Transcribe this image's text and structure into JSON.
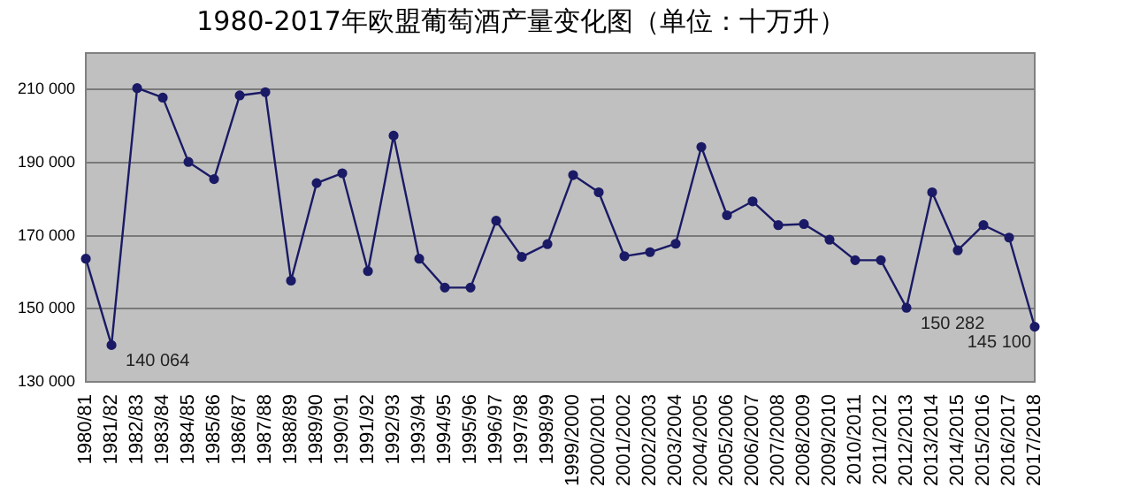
{
  "chart_data": {
    "type": "line",
    "title": "1980-2017年欧盟葡萄酒产量变化图（单位：十万升）",
    "categories": [
      "1980/81",
      "1981/82",
      "1982/83",
      "1983/84",
      "1984/85",
      "1985/86",
      "1986/87",
      "1987/88",
      "1988/89",
      "1989/90",
      "1990/91",
      "1991/92",
      "1992/93",
      "1993/94",
      "1994/95",
      "1995/96",
      "1996/97",
      "1997/98",
      "1998/99",
      "1999/2000",
      "2000/2001",
      "2001/2002",
      "2002/2003",
      "2003/2004",
      "2004/2005",
      "2005/2006",
      "2006/2007",
      "2007/2008",
      "2008/2009",
      "2009/2010",
      "2010/2011",
      "2011/2012",
      "2012/2013",
      "2013/2014",
      "2014/2015",
      "2015/2016",
      "2016/2017",
      "2017/2018"
    ],
    "series": [
      {
        "color": "#1a1a66",
        "values": [
          163700,
          140064,
          210400,
          207800,
          190200,
          185500,
          208400,
          209300,
          157700,
          184400,
          187100,
          160300,
          197400,
          163700,
          155800,
          155800,
          174100,
          164200,
          167700,
          186600,
          181900,
          164400,
          165500,
          167800,
          194300,
          175600,
          179400,
          172900,
          173200,
          168900,
          163300,
          163300,
          150282,
          181900,
          166000,
          172900,
          169500,
          145100
        ],
        "value_labels": [
          null,
          "140 064",
          null,
          null,
          null,
          null,
          null,
          null,
          null,
          null,
          null,
          null,
          null,
          null,
          null,
          null,
          null,
          null,
          null,
          null,
          null,
          null,
          null,
          null,
          null,
          null,
          null,
          null,
          null,
          null,
          null,
          null,
          "150 282",
          null,
          null,
          null,
          null,
          "145 100"
        ]
      }
    ],
    "ylim": [
      130000,
      220000
    ],
    "yticks": [
      {
        "value": 130000,
        "label": "130 000"
      },
      {
        "value": 150000,
        "label": "150 000"
      },
      {
        "value": 170000,
        "label": "170 000"
      },
      {
        "value": 190000,
        "label": "190 000"
      },
      {
        "value": 210000,
        "label": "210 000"
      }
    ],
    "grid": "y",
    "legend": false,
    "marker": "circle",
    "line_style": "solid"
  }
}
